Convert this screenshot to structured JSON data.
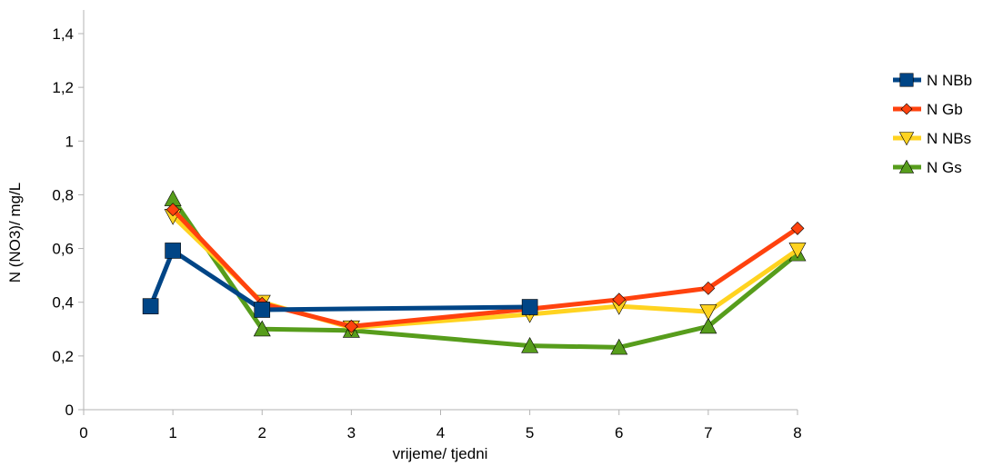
{
  "chart_data": {
    "type": "line",
    "xlabel": "vrijeme/ tjedni",
    "ylabel": "N (NO3)/ mg/L",
    "xlim": [
      0,
      8
    ],
    "ylim": [
      0,
      1.4
    ],
    "x_ticks": [
      "0",
      "1",
      "2",
      "3",
      "4",
      "5",
      "6",
      "7",
      "8"
    ],
    "y_ticks": [
      "0",
      "0,2",
      "0,4",
      "0,6",
      "0,8",
      "1",
      "1,2",
      "1,4"
    ],
    "grid": false,
    "legend_position": "right",
    "series": [
      {
        "name": "N NBb",
        "color": "#004586",
        "marker": "square",
        "points": [
          [
            0.75,
            0.385
          ],
          [
            1,
            0.592
          ],
          [
            2,
            0.372
          ],
          [
            5,
            0.382
          ]
        ]
      },
      {
        "name": "N Gb",
        "color": "#ff420e",
        "marker": "diamond",
        "points": [
          [
            1,
            0.745
          ],
          [
            2,
            0.395
          ],
          [
            3,
            0.31
          ],
          [
            5,
            0.375
          ],
          [
            6,
            0.41
          ],
          [
            7,
            0.452
          ],
          [
            8,
            0.675
          ]
        ]
      },
      {
        "name": "N NBs",
        "color": "#ffd320",
        "marker": "triangle-down",
        "points": [
          [
            1,
            0.72
          ],
          [
            2,
            0.4
          ],
          [
            3,
            0.305
          ],
          [
            5,
            0.355
          ],
          [
            6,
            0.385
          ],
          [
            7,
            0.365
          ],
          [
            8,
            0.595
          ]
        ]
      },
      {
        "name": "N Gs",
        "color": "#579d1c",
        "marker": "triangle-up",
        "points": [
          [
            1,
            0.785
          ],
          [
            2,
            0.3
          ],
          [
            3,
            0.295
          ],
          [
            5,
            0.238
          ],
          [
            6,
            0.232
          ],
          [
            7,
            0.31
          ],
          [
            8,
            0.58
          ]
        ]
      }
    ]
  }
}
